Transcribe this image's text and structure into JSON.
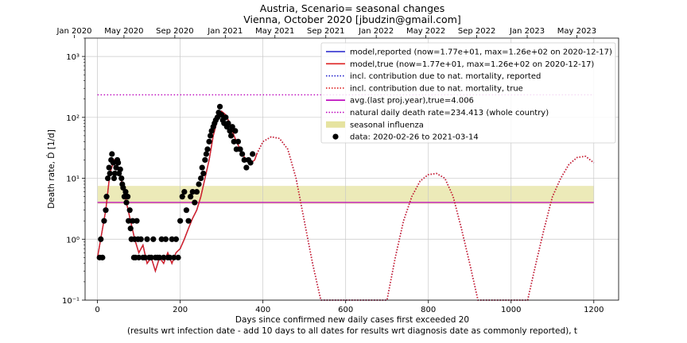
{
  "chart_data": {
    "type": "line",
    "title": "Austria, Scenario= seasonal changes",
    "subtitle": "Vienna, October 2020 [jbudzin@gmail.com]",
    "xlabel": "Days since confirmed new daily cases first exceeded 20",
    "xlabel2": "(results wrt infection date - add 10 days to all dates for results wrt diagnosis date as commonly reported), t",
    "ylabel": "Death rate, Ḋ [1/d]",
    "yscale": "log",
    "xlim": [
      -30,
      1260
    ],
    "ylim": [
      0.1,
      2000
    ],
    "x_ticks": [
      0,
      200,
      400,
      600,
      800,
      1000,
      1200
    ],
    "x_tick_labels": [
      "0",
      "200",
      "400",
      "600",
      "800",
      "1000",
      "1200"
    ],
    "y_ticks": [
      0.1,
      1,
      10,
      100,
      1000
    ],
    "y_tick_labels": [
      "10⁻¹",
      "10⁰",
      "10¹",
      "10²",
      "10³"
    ],
    "top_axis": {
      "ticks": [
        -56,
        64,
        187,
        309,
        429,
        552,
        674,
        794,
        917,
        1039,
        1159
      ],
      "labels": [
        "Jan 2020",
        "May 2020",
        "Sep 2020",
        "Jan 2021",
        "May 2021",
        "Sep 2021",
        "Jan 2022",
        "May 2022",
        "Sep 2022",
        "Jan 2023",
        "May 2023"
      ]
    },
    "grid": true,
    "legend_position": "top-right",
    "legend": [
      {
        "label": "model,reported (now=1.77e+01, max=1.26e+02 on 2020-12-17)",
        "color": "#2222cc",
        "style": "solid"
      },
      {
        "label": "model,true (now=1.77e+01, max=1.26e+02 on 2020-12-17)",
        "color": "#dd2222",
        "style": "solid"
      },
      {
        "label": "incl. contribution due to nat. mortality, reported",
        "color": "#2222cc",
        "style": "dotted"
      },
      {
        "label": "incl. contribution due to nat. mortality, true",
        "color": "#dd2222",
        "style": "dotted"
      },
      {
        "label": "avg.(last proj.year),true=4.006",
        "color": "#bb00bb",
        "style": "solid"
      },
      {
        "label": "natural daily death rate=234.413 (whole country)",
        "color": "#bb00bb",
        "style": "dotted"
      },
      {
        "label": "seasonal influenza",
        "color": "#e6e3a0",
        "style": "band"
      },
      {
        "label": "data: 2020-02-26 to 2021-03-14",
        "color": "#000000",
        "style": "marker"
      }
    ],
    "avg_last_year": 4.006,
    "natural_rate": 234.413,
    "influenza_band": [
      3.8,
      7.5
    ],
    "data_points": {
      "x": [
        5,
        8,
        12,
        16,
        20,
        22,
        25,
        28,
        30,
        33,
        35,
        38,
        40,
        42,
        45,
        48,
        50,
        52,
        55,
        58,
        60,
        62,
        65,
        68,
        70,
        73,
        75,
        78,
        80,
        82,
        85,
        88,
        90,
        92,
        95,
        98,
        100,
        105,
        110,
        115,
        120,
        125,
        130,
        135,
        140,
        145,
        150,
        155,
        160,
        165,
        170,
        175,
        180,
        185,
        190,
        195,
        200,
        205,
        210,
        215,
        220,
        225,
        230,
        235,
        240,
        245,
        250,
        253,
        256,
        260,
        263,
        266,
        270,
        273,
        276,
        280,
        283,
        286,
        290,
        293,
        296,
        300,
        303,
        306,
        310,
        313,
        316,
        320,
        323,
        326,
        330,
        333,
        336,
        340,
        345,
        350,
        355,
        360,
        365,
        370,
        375
      ],
      "y": [
        0.5,
        1,
        0.5,
        2,
        3,
        5,
        10,
        15,
        12,
        20,
        25,
        18,
        10,
        12,
        15,
        20,
        18,
        12,
        14,
        10,
        8,
        7,
        5,
        6,
        4,
        5,
        2,
        3,
        1.5,
        1,
        2,
        0.5,
        1,
        0.5,
        2,
        1,
        0.5,
        1,
        0.5,
        0.5,
        1,
        0.5,
        0.5,
        1,
        0.5,
        0.5,
        0.5,
        1,
        0.5,
        1,
        0.5,
        0.5,
        1,
        0.5,
        1,
        0.5,
        2,
        5,
        6,
        3,
        2,
        5,
        6,
        4,
        6,
        8,
        10,
        15,
        12,
        20,
        25,
        30,
        40,
        50,
        60,
        70,
        80,
        90,
        100,
        120,
        150,
        110,
        90,
        80,
        100,
        70,
        80,
        60,
        50,
        70,
        40,
        60,
        30,
        40,
        30,
        25,
        20,
        15,
        20,
        18,
        25
      ],
      "color": "#000000"
    },
    "series": [
      {
        "name": "model,reported (now=1.77e+01, max=1.26e+02 on 2020-12-17)",
        "color": "#2222cc",
        "x": [
          0,
          20,
          30,
          40,
          50,
          60,
          70,
          80,
          90,
          100,
          110,
          120,
          130,
          140,
          150,
          160,
          170,
          180,
          190,
          200,
          210,
          220,
          230,
          240,
          250,
          260,
          270,
          280,
          290,
          300,
          310,
          320,
          330,
          340,
          350,
          360,
          370,
          380,
          385
        ],
        "y": [
          0.5,
          3,
          12,
          20,
          15,
          8,
          4,
          2,
          1,
          0.6,
          0.8,
          0.4,
          0.5,
          0.3,
          0.5,
          0.4,
          0.6,
          0.4,
          0.6,
          0.7,
          1.0,
          1.5,
          2.2,
          3.0,
          5,
          10,
          20,
          50,
          90,
          126,
          110,
          80,
          50,
          35,
          25,
          20,
          17.7,
          20,
          25
        ]
      },
      {
        "name": "model,true (now=1.77e+01, max=1.26e+02 on 2020-12-17)",
        "color": "#dd2222",
        "x": [
          0,
          20,
          30,
          40,
          50,
          60,
          70,
          80,
          90,
          100,
          110,
          120,
          130,
          140,
          150,
          160,
          170,
          180,
          190,
          200,
          210,
          220,
          230,
          240,
          250,
          260,
          270,
          280,
          290,
          300,
          310,
          320,
          330,
          340,
          350,
          360,
          370,
          380,
          385
        ],
        "y": [
          0.5,
          3,
          12,
          20,
          15,
          8,
          4,
          2,
          1,
          0.6,
          0.8,
          0.4,
          0.5,
          0.3,
          0.5,
          0.4,
          0.6,
          0.4,
          0.6,
          0.7,
          1.0,
          1.5,
          2.2,
          3.0,
          5,
          10,
          20,
          50,
          90,
          126,
          110,
          80,
          50,
          35,
          25,
          20,
          17.7,
          20,
          25
        ]
      },
      {
        "name": "incl. contribution due to nat. mortality, reported",
        "color": "#2222cc",
        "x": [
          385,
          400,
          420,
          440,
          460,
          480,
          500,
          520,
          540,
          700,
          720,
          740,
          760,
          780,
          800,
          820,
          840,
          860,
          880,
          900,
          920,
          1040,
          1060,
          1080,
          1100,
          1120,
          1140,
          1160,
          1180,
          1200
        ],
        "y": [
          25,
          40,
          48,
          45,
          30,
          10,
          2,
          0.4,
          0.1,
          0.1,
          0.5,
          2,
          5,
          9,
          11.5,
          12,
          10,
          5,
          1.5,
          0.4,
          0.1,
          0.1,
          0.4,
          1.5,
          5,
          10,
          17,
          22,
          23,
          18
        ]
      },
      {
        "name": "incl. contribution due to nat. mortality, true",
        "color": "#dd2222",
        "x": [
          385,
          400,
          420,
          440,
          460,
          480,
          500,
          520,
          540,
          700,
          720,
          740,
          760,
          780,
          800,
          820,
          840,
          860,
          880,
          900,
          920,
          1040,
          1060,
          1080,
          1100,
          1120,
          1140,
          1160,
          1180,
          1200
        ],
        "y": [
          25,
          40,
          48,
          45,
          30,
          10,
          2,
          0.4,
          0.1,
          0.1,
          0.5,
          2,
          5,
          9,
          11.5,
          12,
          10,
          5,
          1.5,
          0.4,
          0.1,
          0.1,
          0.4,
          1.5,
          5,
          10,
          17,
          22,
          23,
          18
        ]
      }
    ]
  }
}
